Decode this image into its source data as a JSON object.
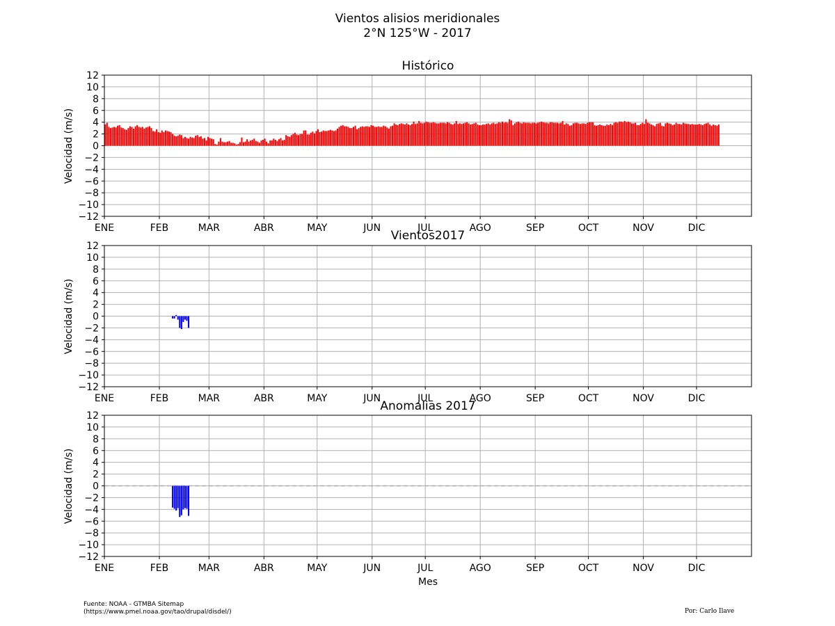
{
  "figure": {
    "title_line1": "Vientos alisios meridionales",
    "title_line2": "2°N 125°W - 2017",
    "footer_source_line1": "Fuente: NOAA - GTMBA Sitemap",
    "footer_source_line2": "(https://www.pmel.noaa.gov/tao/drupal/disdel/)",
    "footer_author": "Por: Carlo Ilave"
  },
  "chart_data": [
    {
      "type": "bar",
      "title": "Histórico",
      "ylabel": "Velocidad (m/s)",
      "xlabel": "",
      "ylim": [
        -12,
        12
      ],
      "yticks": [
        "12",
        "10",
        "8",
        "6",
        "4",
        "2",
        "0",
        "−2",
        "−4",
        "−6",
        "−8",
        "−10",
        "−12"
      ],
      "months": [
        "ENE",
        "FEB",
        "MAR",
        "ABR",
        "MAY",
        "JUN",
        "JUL",
        "AGO",
        "SEP",
        "OCT",
        "NOV",
        "DIC"
      ],
      "x_units": "day of year (1-365)",
      "grid": true,
      "color": "#ff0000",
      "series": [
        {
          "x_start": 1,
          "values": [
            3.6,
            3.9,
            3.2,
            3.0,
            3.1,
            3.2,
            3.1,
            3.4,
            3.5,
            3.1,
            3.0,
            2.8,
            2.7,
            3.0,
            3.3,
            3.2,
            2.9,
            3.3,
            3.5,
            3.2,
            3.1,
            3.2,
            2.9,
            3.1,
            3.2,
            3.3,
            3.0,
            2.5,
            2.4,
            2.8,
            2.3,
            2.2,
            2.6,
            2.3,
            2.6,
            2.5,
            2.4,
            2.3,
            2.0,
            1.7,
            1.6,
            1.7,
            1.9,
            1.8,
            1.3,
            1.5,
            1.3,
            1.2,
            1.5,
            1.4,
            1.3,
            1.7,
            1.8,
            1.5,
            1.6,
            1.2,
            1.3,
            0.9,
            1.5,
            1.3,
            1.2,
            1.1,
            0.3,
            0.2,
            0.7,
            1.3,
            0.7,
            0.6,
            0.6,
            0.7,
            0.8,
            0.5,
            0.5,
            0.4,
            0.2,
            0.3,
            0.6,
            1.4,
            0.6,
            0.7,
            1.1,
            0.7,
            0.9,
            1.0,
            1.2,
            0.8,
            0.7,
            0.5,
            0.9,
            1.0,
            1.2,
            0.7,
            0.4,
            0.9,
            0.9,
            1.2,
            1.0,
            0.8,
            1.1,
            1.3,
            0.9,
            1.0,
            1.8,
            1.6,
            1.5,
            1.8,
            2.0,
            2.2,
            1.9,
            1.8,
            2.0,
            2.0,
            2.6,
            2.6,
            1.9,
            1.9,
            2.2,
            2.4,
            2.1,
            2.5,
            2.8,
            2.3,
            2.4,
            2.6,
            2.5,
            2.5,
            2.6,
            2.7,
            2.6,
            2.5,
            2.6,
            2.9,
            3.2,
            3.4,
            3.5,
            3.3,
            3.3,
            3.2,
            3.0,
            3.0,
            3.2,
            3.4,
            2.8,
            3.0,
            3.2,
            3.3,
            3.2,
            3.3,
            3.3,
            3.2,
            3.5,
            3.4,
            3.2,
            3.2,
            3.3,
            3.2,
            3.2,
            3.4,
            3.3,
            3.1,
            2.9,
            3.3,
            3.4,
            3.8,
            3.6,
            3.5,
            3.7,
            3.8,
            3.7,
            3.6,
            3.8,
            3.6,
            3.5,
            3.7,
            4.1,
            3.7,
            3.8,
            4.2,
            3.9,
            3.8,
            3.9,
            4.1,
            4.0,
            3.9,
            3.9,
            4.0,
            3.9,
            3.8,
            3.8,
            3.9,
            3.9,
            3.9,
            3.8,
            4.0,
            3.9,
            3.7,
            3.6,
            3.8,
            4.2,
            3.7,
            3.8,
            3.7,
            3.8,
            3.9,
            4.0,
            3.8,
            3.6,
            3.7,
            3.8,
            3.9,
            3.6,
            3.5,
            3.5,
            3.6,
            3.6,
            3.7,
            3.8,
            3.6,
            3.8,
            3.9,
            3.7,
            3.8,
            4.0,
            3.9,
            4.1,
            3.9,
            4.0,
            3.9,
            4.5,
            4.3,
            3.5,
            3.8,
            4.0,
            4.1,
            3.9,
            3.8,
            4.0,
            3.9,
            3.9,
            3.9,
            3.8,
            3.9,
            3.9,
            3.8,
            3.9,
            4.0,
            4.1,
            4.0,
            3.9,
            3.9,
            3.8,
            4.0,
            4.0,
            3.9,
            3.9,
            3.9,
            3.8,
            3.9,
            4.2,
            3.6,
            3.8,
            3.7,
            3.4,
            3.5,
            3.8,
            3.9,
            3.9,
            3.8,
            3.7,
            3.8,
            3.8,
            3.7,
            3.9,
            4.0,
            4.0,
            4.0,
            3.5,
            3.4,
            3.5,
            3.6,
            3.5,
            3.4,
            3.4,
            3.6,
            3.5,
            3.7,
            3.5,
            3.9,
            4.0,
            3.9,
            4.1,
            4.1,
            4.0,
            4.2,
            4.0,
            4.1,
            4.0,
            3.8,
            3.8,
            3.9,
            3.5,
            3.5,
            3.7,
            3.9,
            3.7,
            4.5,
            3.9,
            3.8,
            3.6,
            3.5,
            3.3,
            3.7,
            3.8,
            3.9,
            3.4,
            3.3,
            3.8,
            3.9,
            3.8,
            3.7,
            3.5,
            3.6,
            3.9,
            3.7,
            3.7,
            3.6,
            3.9,
            3.8,
            3.7,
            3.7,
            3.6,
            3.7,
            3.6,
            3.6,
            3.6,
            3.7,
            3.6,
            3.5,
            3.7,
            3.8,
            3.9,
            3.6,
            3.4,
            3.6,
            3.5,
            3.4,
            3.6
          ]
        }
      ]
    },
    {
      "type": "bar",
      "title": "Vientos2017",
      "ylabel": "Velocidad (m/s)",
      "xlabel": "",
      "ylim": [
        -12,
        12
      ],
      "yticks": [
        "12",
        "10",
        "8",
        "6",
        "4",
        "2",
        "0",
        "−2",
        "−4",
        "−6",
        "−8",
        "−10",
        "−12"
      ],
      "months": [
        "ENE",
        "FEB",
        "MAR",
        "ABR",
        "MAY",
        "JUN",
        "JUL",
        "AGO",
        "SEP",
        "OCT",
        "NOV",
        "DIC"
      ],
      "x_units": "day of year (1-365)",
      "grid": true,
      "color": "#0000ff",
      "series": [
        {
          "x_start": 39,
          "values": [
            -0.4,
            -0.4,
            0.2,
            -0.6,
            -2.0,
            -2.2,
            -1.0,
            -0.6,
            -0.8,
            -2.0
          ]
        }
      ]
    },
    {
      "type": "bar",
      "title": "Anomalias 2017",
      "ylabel": "Velocidad (m/s)",
      "xlabel": "Mes",
      "ylim": [
        -12,
        12
      ],
      "yticks": [
        "12",
        "10",
        "8",
        "6",
        "4",
        "2",
        "0",
        "−2",
        "−4",
        "−6",
        "−8",
        "−10",
        "−12"
      ],
      "months": [
        "ENE",
        "FEB",
        "MAR",
        "ABR",
        "MAY",
        "JUN",
        "JUL",
        "AGO",
        "SEP",
        "OCT",
        "NOV",
        "DIC"
      ],
      "x_units": "day of year (1-365)",
      "grid": true,
      "zero_line": "dashed",
      "color": "#0000ff",
      "series": [
        {
          "x_start": 39,
          "values": [
            -3.7,
            -3.9,
            -4.2,
            -3.8,
            -5.3,
            -5.0,
            -4.0,
            -3.8,
            -3.9,
            -5.1
          ]
        }
      ]
    }
  ]
}
